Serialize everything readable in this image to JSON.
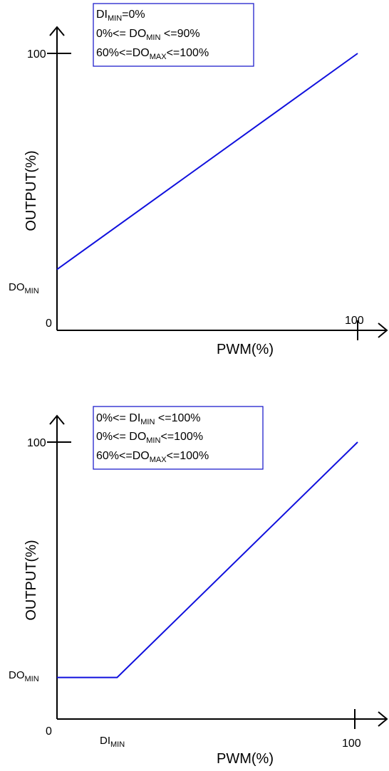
{
  "colors": {
    "curve": "#1010dd",
    "axis": "#000000",
    "box_border": "#1f1fcc",
    "text": "#000000"
  },
  "charts": [
    {
      "y_tick_top": "100",
      "y_label": "OUTPUT(%)",
      "y_marker_base": "DO",
      "y_marker_sub": "MIN",
      "origin": "0",
      "x_tick_right": "100",
      "x_label": "PWM(%)",
      "x_marker_base": "",
      "x_marker_sub": "",
      "legend": [
        {
          "pre": "",
          "base": "DI",
          "sub": "MIN",
          "post": "=0%"
        },
        {
          "pre": "0%<= ",
          "base": "DO",
          "sub": "MIN",
          "post": " <=90%"
        },
        {
          "pre": "60%<=",
          "base": "DO",
          "sub": "MAX",
          "post": "<=100%"
        }
      ],
      "curve": {
        "di_min": 0,
        "do_min": 22,
        "do_max": 100
      }
    },
    {
      "y_tick_top": "100",
      "y_label": "OUTPUT(%)",
      "y_marker_base": "DO",
      "y_marker_sub": "MIN",
      "origin": "0",
      "x_tick_right": "100",
      "x_label": "PWM(%)",
      "x_marker_base": "DI",
      "x_marker_sub": "MIN",
      "legend": [
        {
          "pre": "0%<= ",
          "base": "DI",
          "sub": "MIN",
          "post": " <=100%"
        },
        {
          "pre": "0%<= ",
          "base": "DO",
          "sub": "MIN",
          "post": "<=100%"
        },
        {
          "pre": "60%<=",
          "base": "DO",
          "sub": "MAX",
          "post": "<=100%"
        }
      ],
      "curve": {
        "di_min": 20,
        "do_min": 15,
        "do_max": 100
      }
    }
  ]
}
